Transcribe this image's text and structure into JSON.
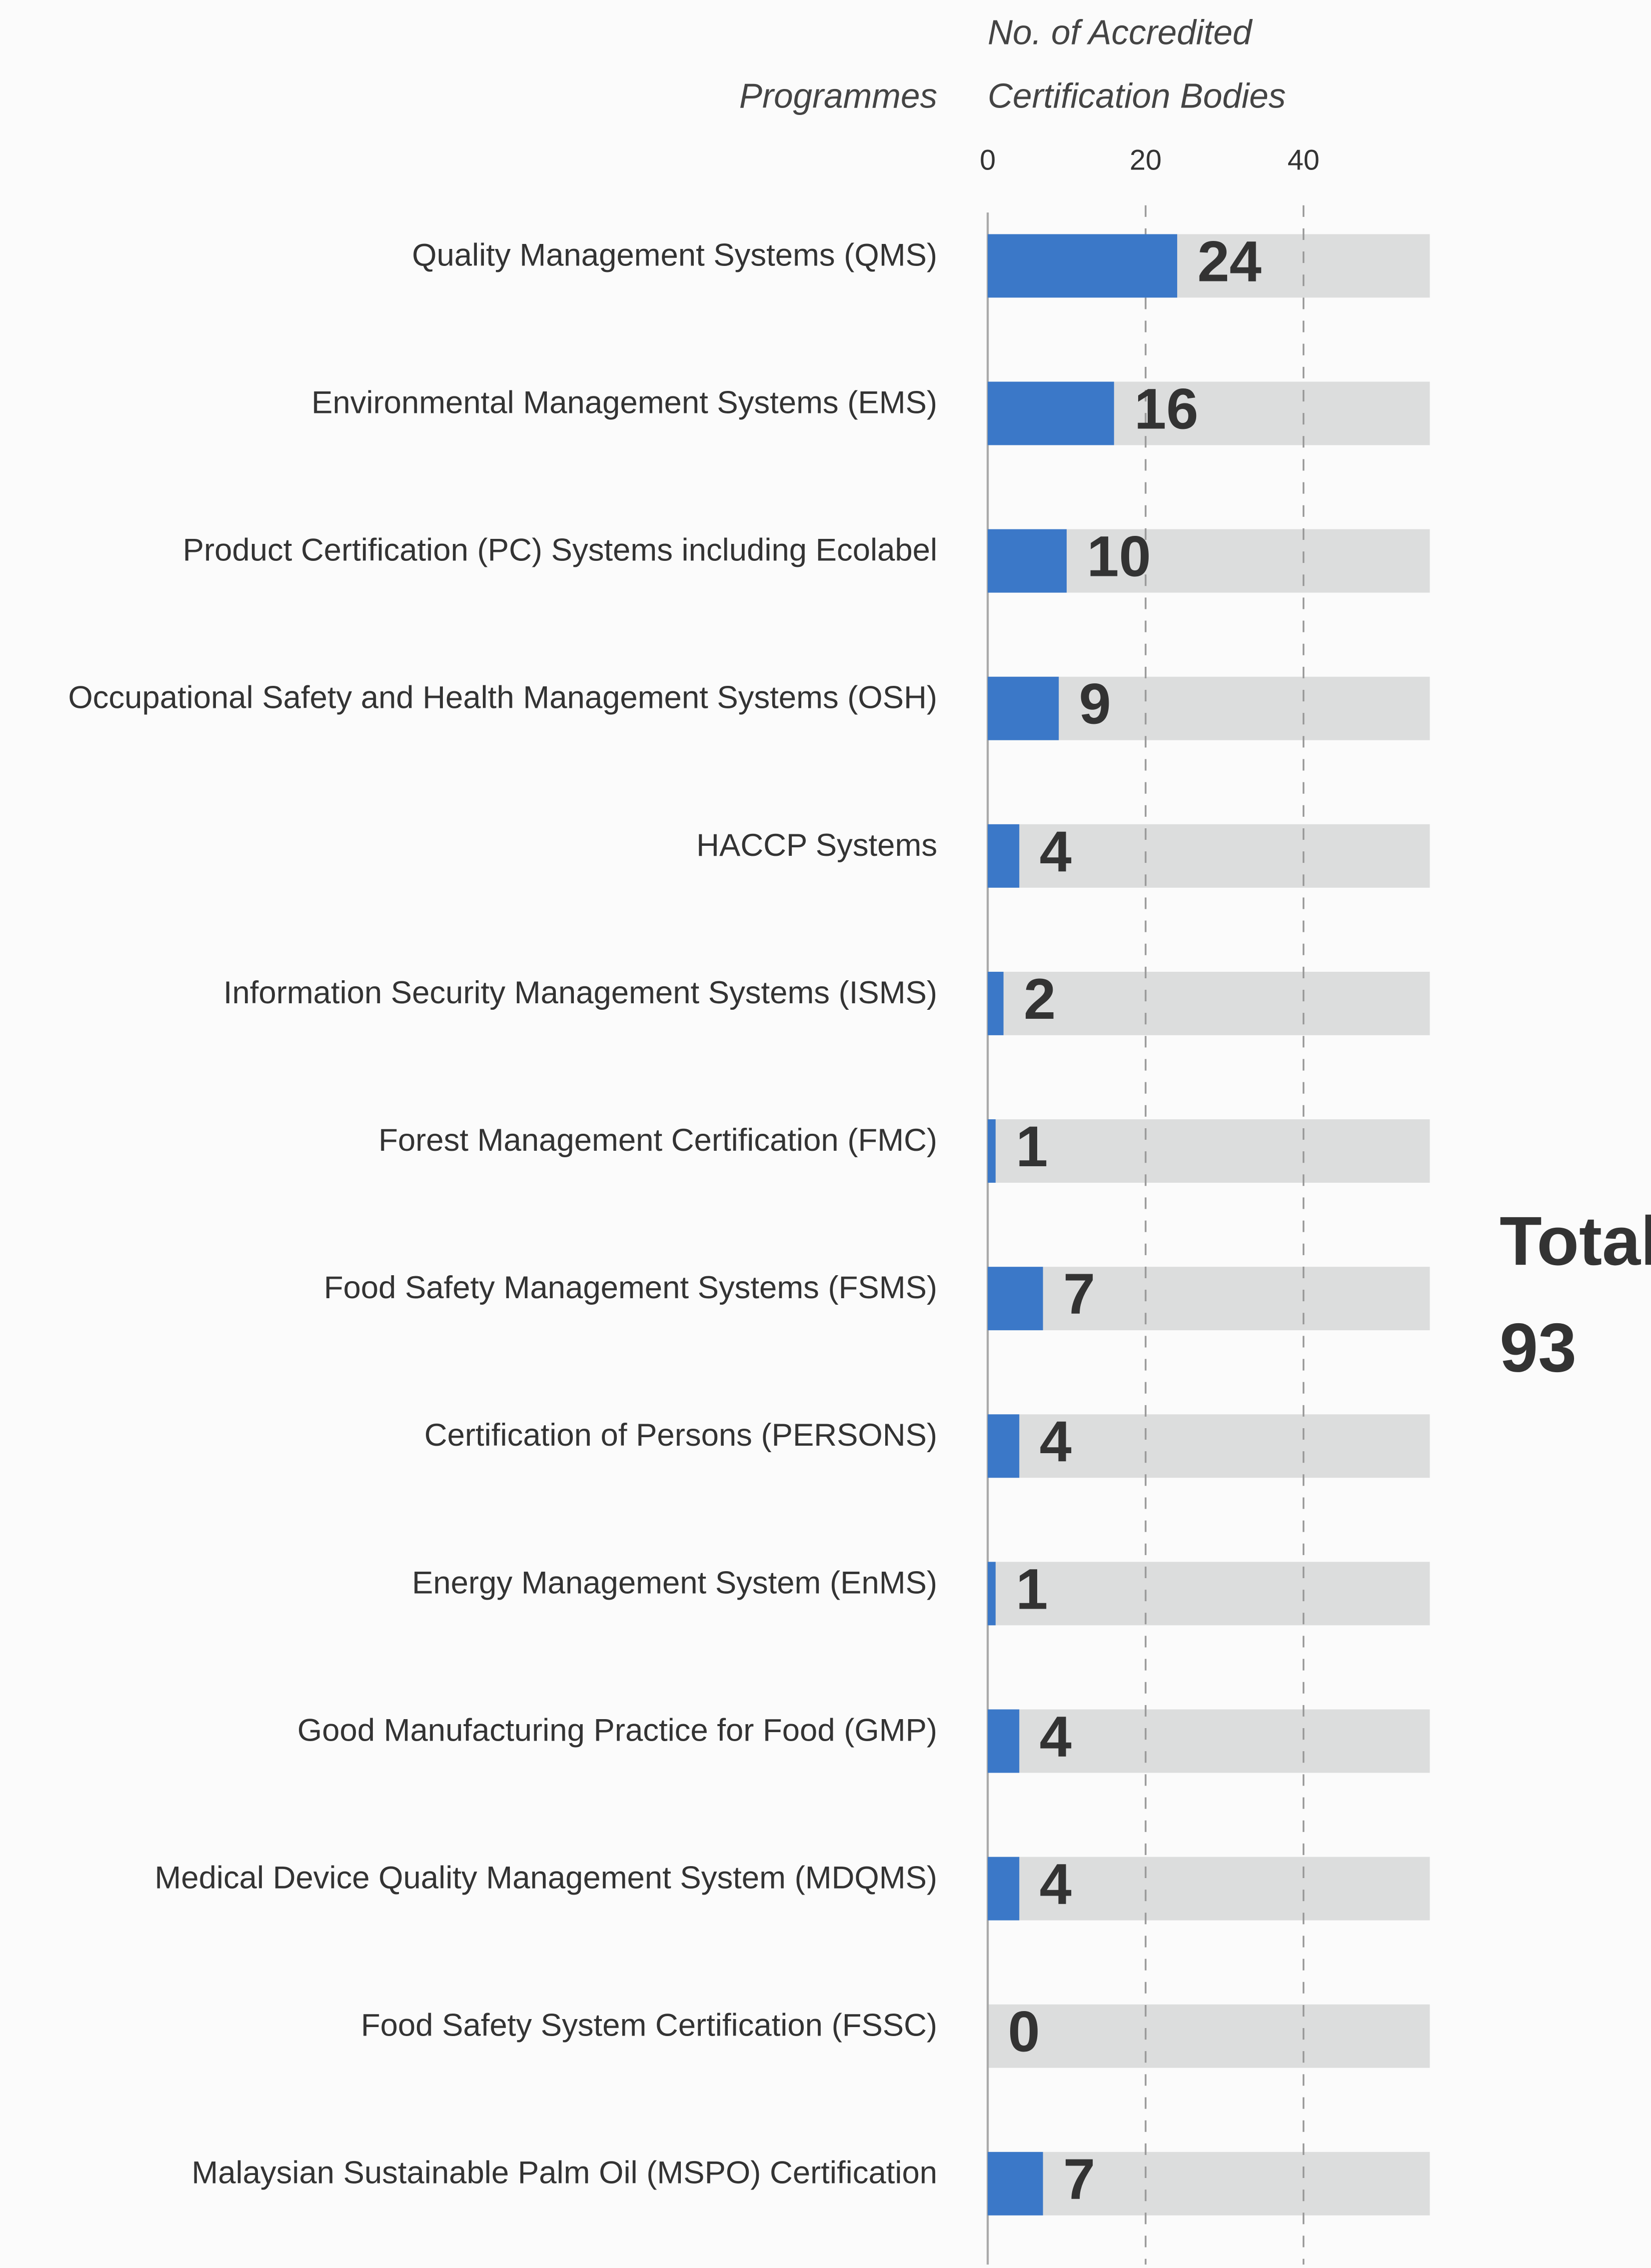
{
  "chart_data": {
    "type": "bar",
    "orientation": "horizontal",
    "y_label": "Programmes",
    "x_label": [
      "No. of Accredited",
      "Certification Bodies"
    ],
    "categories": [
      "Quality Management Systems (QMS)",
      "Environmental Management Systems (EMS)",
      "Product Certification (PC) Systems including Ecolabel",
      "Occupational Safety and Health Management Systems (OSH)",
      "HACCP Systems",
      "Information Security Management Systems (ISMS)",
      "Forest Management Certification (FMC)",
      "Food Safety Management Systems (FSMS)",
      "Certification of Persons (PERSONS)",
      "Energy Management System (EnMS)",
      "Good Manufacturing Practice for Food (GMP)",
      "Medical Device Quality Management System (MDQMS)",
      "Food Safety System Certification (FSSC)",
      "Malaysian Sustainable Palm Oil (MSPO) Certification"
    ],
    "values": [
      24,
      16,
      10,
      9,
      4,
      2,
      1,
      7,
      4,
      1,
      4,
      4,
      0,
      7
    ],
    "color": "#3b78c8",
    "track_color": "#dcdddd",
    "xlim": [
      0,
      56
    ],
    "xticks": [
      0,
      20,
      40
    ],
    "grid": true,
    "total_label": "Total",
    "total": 93
  }
}
